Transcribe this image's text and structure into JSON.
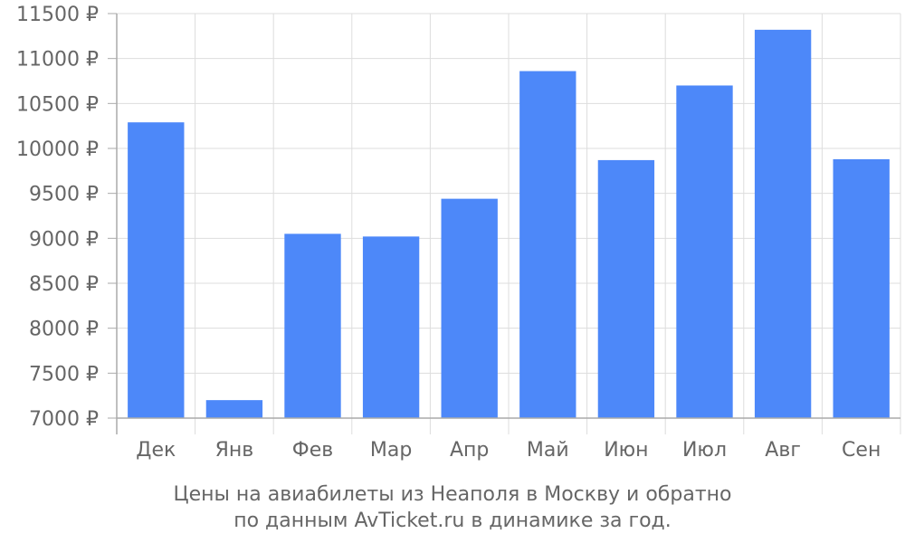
{
  "chart_data": {
    "type": "bar",
    "categories": [
      "Дек",
      "Янв",
      "Фев",
      "Мар",
      "Апр",
      "Май",
      "Июн",
      "Июл",
      "Авг",
      "Сен"
    ],
    "values": [
      10290,
      7200,
      9050,
      9020,
      9440,
      10860,
      9870,
      10700,
      11320,
      9880
    ],
    "ylim": [
      7000,
      11500
    ],
    "y_ticks": [
      7000,
      7500,
      8000,
      8500,
      9000,
      9500,
      10000,
      10500,
      11000,
      11500
    ],
    "y_tick_labels": [
      "7000 ₽",
      "7500 ₽",
      "8000 ₽",
      "8500 ₽",
      "9000 ₽",
      "9500 ₽",
      "10000 ₽",
      "10500 ₽",
      "11000 ₽",
      "11500 ₽"
    ],
    "grid": true,
    "bar_color": "#4d88f9",
    "grid_color": "#dddddd",
    "axis_color": "#aaaaaa",
    "text_color": "#666666",
    "caption_line1": "Цены на авиабилеты из Неаполя в Москву и обратно",
    "caption_line2": "по данным AvTicket.ru в динамике за год."
  }
}
